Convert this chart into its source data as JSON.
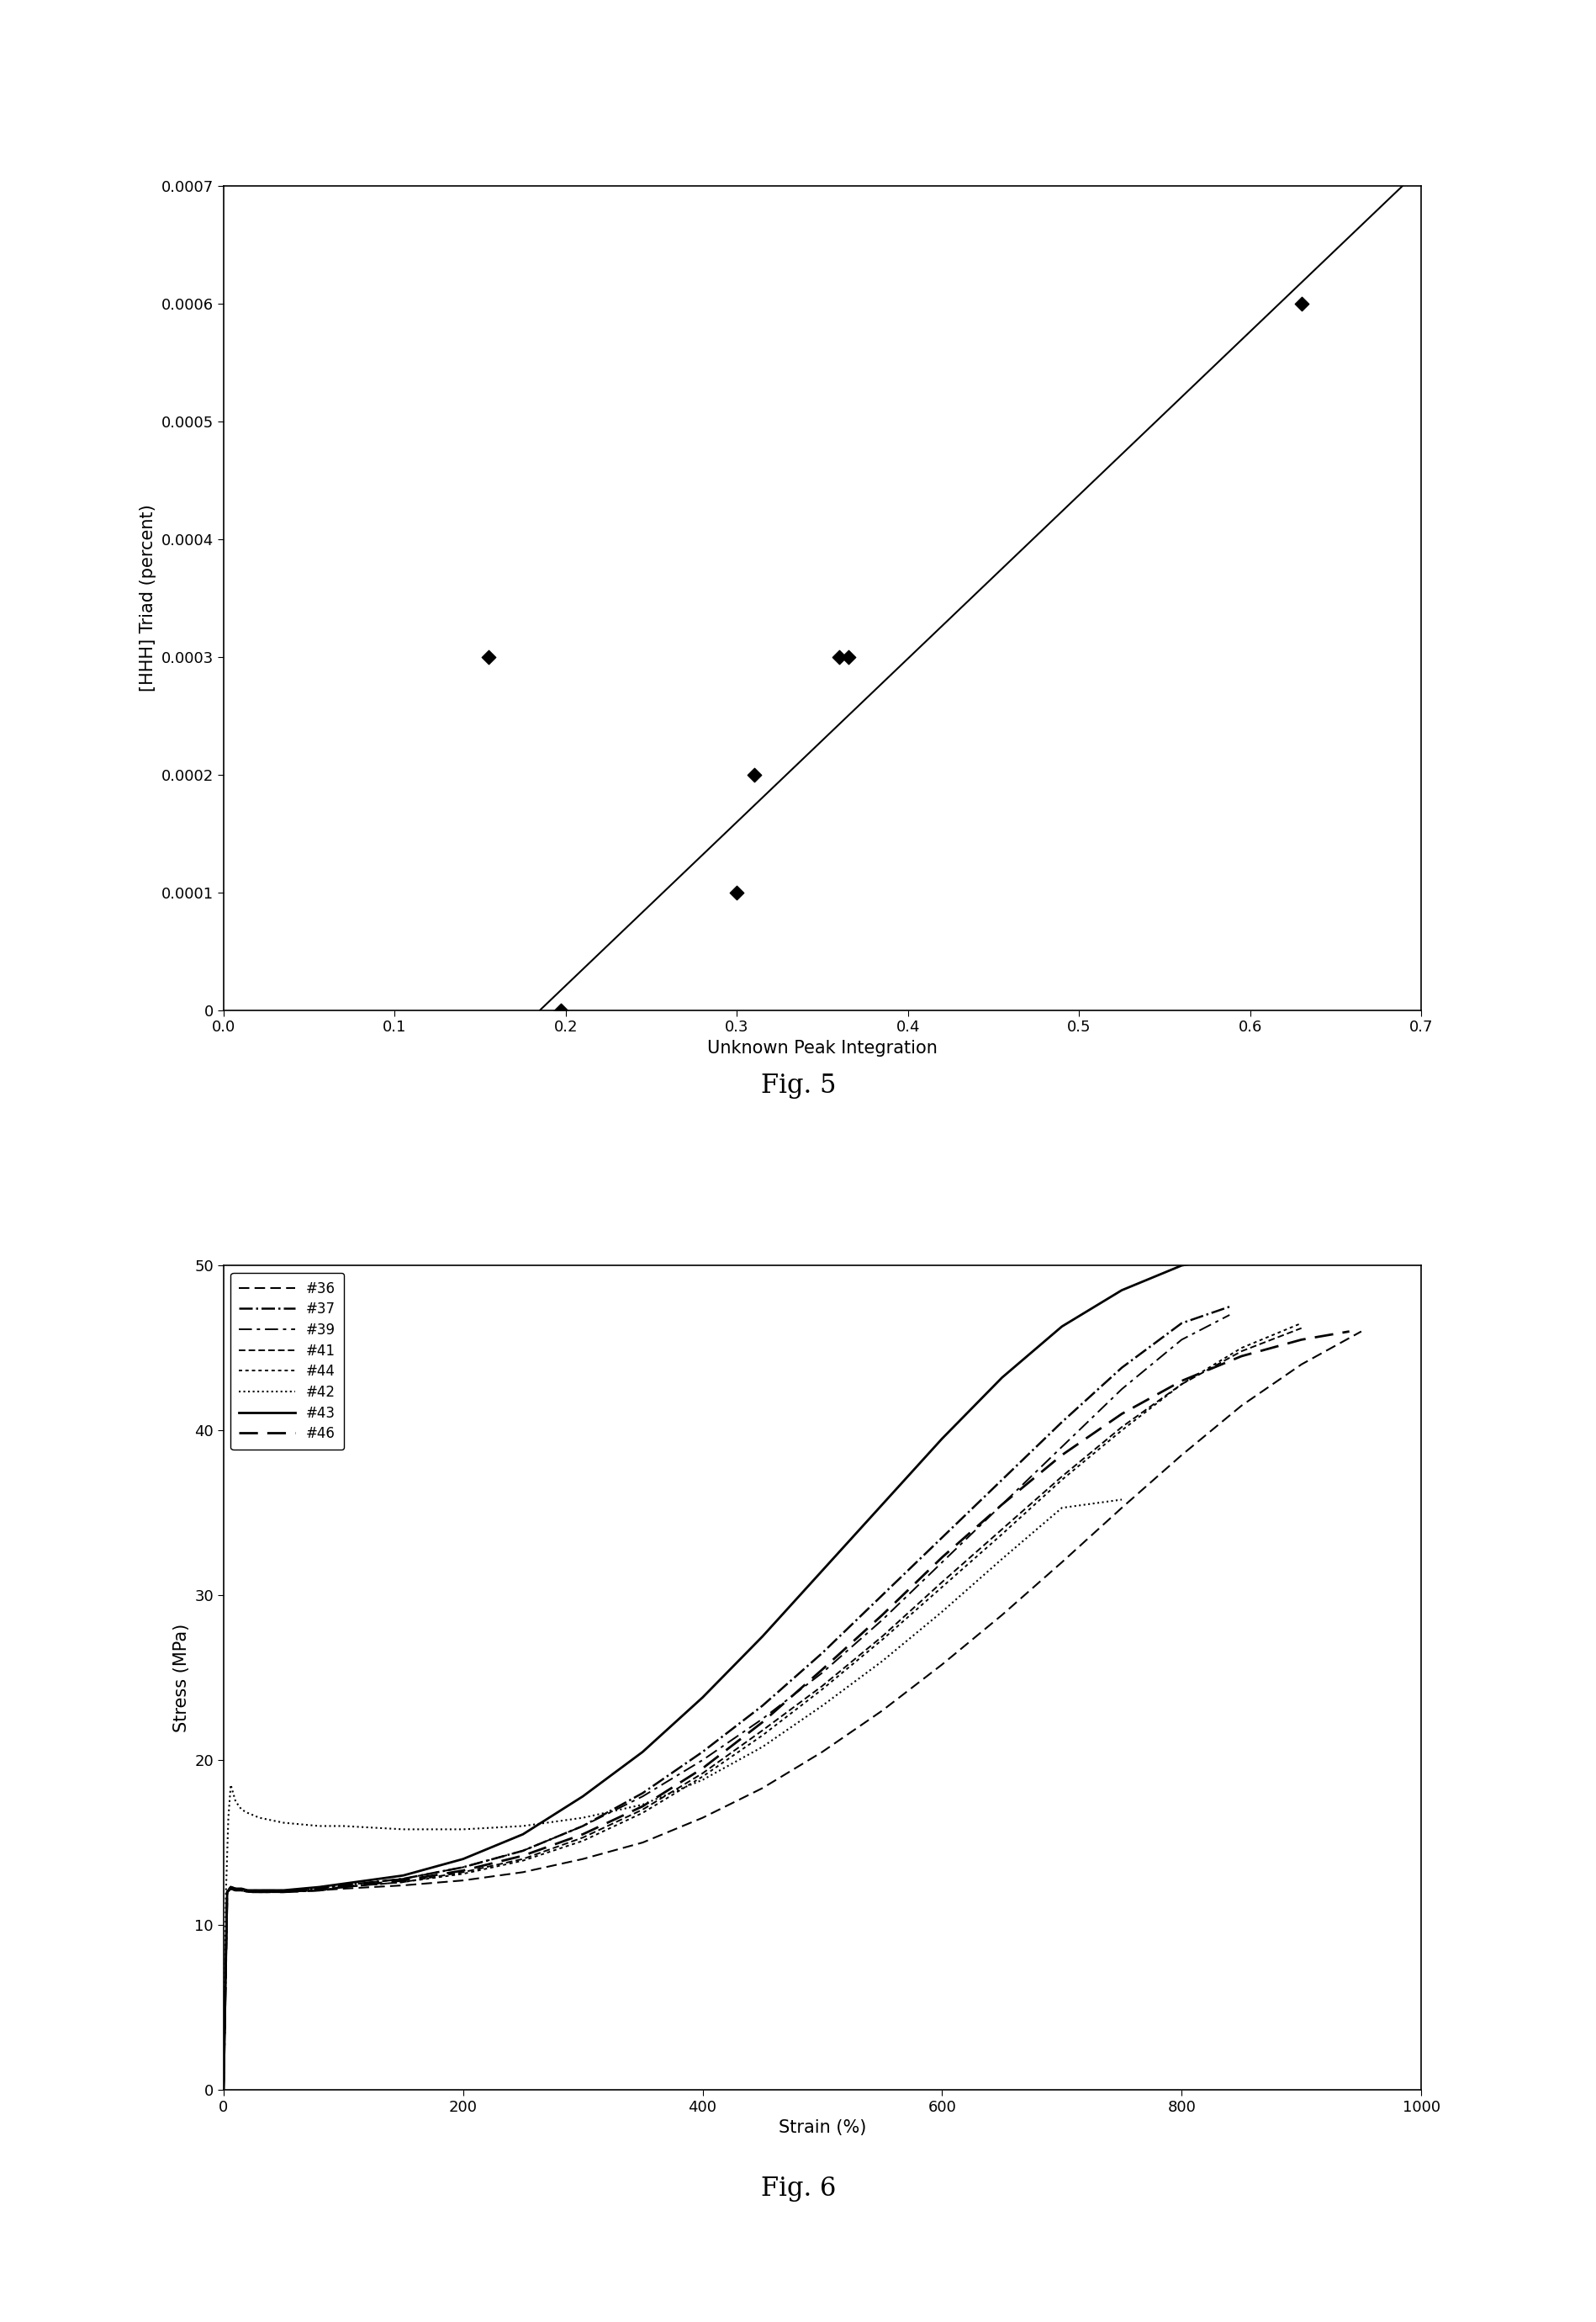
{
  "fig5": {
    "scatter_x": [
      0.197,
      0.155,
      0.3,
      0.31,
      0.36,
      0.365,
      0.63
    ],
    "scatter_y": [
      0.0,
      0.0003,
      0.0001,
      0.0002,
      0.0003,
      0.0003,
      0.0006
    ],
    "line_x": [
      0.185,
      0.7
    ],
    "line_y": [
      0.0,
      0.000715
    ],
    "xlabel": "Unknown Peak Integration",
    "ylabel": "[HHH] Triad (percent)",
    "xlim": [
      0,
      0.7
    ],
    "ylim": [
      0,
      0.0007
    ],
    "xticks": [
      0,
      0.1,
      0.2,
      0.3,
      0.4,
      0.5,
      0.6,
      0.7
    ],
    "yticks": [
      0,
      0.0001,
      0.0002,
      0.0003,
      0.0004,
      0.0005,
      0.0006,
      0.0007
    ],
    "fig_label": "Fig. 5"
  },
  "fig6": {
    "xlabel": "Strain (%)",
    "ylabel": "Stress (MPa)",
    "xlim": [
      0,
      1000
    ],
    "ylim": [
      0,
      50
    ],
    "xticks": [
      0,
      200,
      400,
      600,
      800,
      1000
    ],
    "yticks": [
      0,
      10,
      20,
      30,
      40,
      50
    ],
    "fig_label": "Fig. 6",
    "series": [
      {
        "label": "#36",
        "ls": "--",
        "dashes": [
          6,
          3
        ],
        "lw": 1.5,
        "color": "#000000",
        "x": [
          0,
          3,
          6,
          10,
          15,
          20,
          30,
          50,
          80,
          100,
          150,
          200,
          250,
          300,
          350,
          400,
          450,
          500,
          550,
          600,
          650,
          700,
          750,
          800,
          850,
          900,
          950
        ],
        "y": [
          0,
          12.0,
          12.2,
          12.1,
          12.1,
          12.0,
          12.0,
          12.0,
          12.1,
          12.2,
          12.4,
          12.7,
          13.2,
          14.0,
          15.0,
          16.5,
          18.3,
          20.5,
          23.0,
          25.8,
          28.8,
          32.0,
          35.3,
          38.5,
          41.5,
          44.0,
          46.0
        ]
      },
      {
        "label": "#37",
        "ls": "-.",
        "dashes": null,
        "lw": 1.8,
        "color": "#000000",
        "x": [
          0,
          3,
          6,
          10,
          15,
          20,
          30,
          50,
          80,
          100,
          150,
          200,
          250,
          300,
          350,
          400,
          450,
          500,
          550,
          600,
          650,
          700,
          750,
          800,
          840
        ],
        "y": [
          0,
          12.0,
          12.3,
          12.2,
          12.1,
          12.1,
          12.0,
          12.0,
          12.2,
          12.4,
          12.8,
          13.5,
          14.5,
          16.0,
          18.0,
          20.5,
          23.3,
          26.5,
          30.0,
          33.5,
          37.0,
          40.5,
          43.8,
          46.5,
          47.5
        ]
      },
      {
        "label": "#39",
        "ls": "-.",
        "dashes": [
          8,
          3,
          2,
          3
        ],
        "lw": 1.4,
        "color": "#000000",
        "x": [
          0,
          3,
          6,
          10,
          15,
          20,
          30,
          50,
          80,
          100,
          150,
          200,
          250,
          300,
          350,
          400,
          450,
          500,
          550,
          600,
          650,
          700,
          750,
          800,
          840
        ],
        "y": [
          0,
          12.0,
          12.3,
          12.2,
          12.2,
          12.1,
          12.1,
          12.1,
          12.2,
          12.4,
          12.8,
          13.5,
          14.5,
          16.0,
          17.8,
          20.0,
          22.5,
          25.3,
          28.5,
          32.0,
          35.5,
          39.0,
          42.5,
          45.5,
          47.0
        ]
      },
      {
        "label": "#41",
        "ls": "--",
        "dashes": [
          4,
          2
        ],
        "lw": 1.4,
        "color": "#000000",
        "x": [
          0,
          3,
          6,
          10,
          15,
          20,
          30,
          50,
          80,
          100,
          150,
          200,
          250,
          300,
          350,
          400,
          450,
          500,
          550,
          600,
          650,
          700,
          750,
          800,
          850,
          900
        ],
        "y": [
          0,
          12.0,
          12.2,
          12.1,
          12.1,
          12.0,
          12.0,
          12.0,
          12.1,
          12.3,
          12.6,
          13.2,
          14.0,
          15.3,
          17.0,
          19.2,
          21.8,
          24.5,
          27.5,
          30.8,
          34.0,
          37.2,
          40.2,
          42.8,
          44.8,
          46.2
        ]
      },
      {
        "label": "#44",
        "ls": "--",
        "dashes": [
          2,
          2
        ],
        "lw": 1.4,
        "color": "#000000",
        "x": [
          0,
          3,
          6,
          10,
          15,
          20,
          30,
          50,
          80,
          100,
          150,
          200,
          250,
          300,
          350,
          400,
          450,
          500,
          550,
          600,
          650,
          700,
          750,
          800,
          850,
          900
        ],
        "y": [
          0,
          12.0,
          12.2,
          12.1,
          12.1,
          12.0,
          12.0,
          12.0,
          12.1,
          12.3,
          12.6,
          13.1,
          13.9,
          15.1,
          16.8,
          19.0,
          21.5,
          24.3,
          27.3,
          30.5,
          33.7,
          37.0,
          40.0,
          42.8,
          45.0,
          46.5
        ]
      },
      {
        "label": "#42",
        "ls": ":",
        "dashes": null,
        "lw": 1.5,
        "color": "#000000",
        "x": [
          0,
          2,
          4,
          6,
          8,
          10,
          15,
          20,
          30,
          50,
          80,
          100,
          150,
          200,
          250,
          300,
          350,
          400,
          450,
          500,
          550,
          600,
          650,
          700,
          750
        ],
        "y": [
          0,
          12.0,
          16.5,
          18.5,
          18.0,
          17.5,
          17.0,
          16.8,
          16.5,
          16.2,
          16.0,
          16.0,
          15.8,
          15.8,
          16.0,
          16.5,
          17.3,
          18.8,
          20.8,
          23.3,
          26.0,
          29.0,
          32.2,
          35.3,
          35.8
        ]
      },
      {
        "label": "#43",
        "ls": "-",
        "dashes": null,
        "lw": 2.0,
        "color": "#000000",
        "x": [
          0,
          3,
          6,
          10,
          15,
          20,
          30,
          50,
          80,
          100,
          150,
          200,
          250,
          300,
          350,
          400,
          450,
          500,
          550,
          600,
          650,
          700,
          750,
          800,
          840
        ],
        "y": [
          0,
          12.0,
          12.3,
          12.2,
          12.2,
          12.1,
          12.1,
          12.1,
          12.3,
          12.5,
          13.0,
          14.0,
          15.5,
          17.8,
          20.5,
          23.8,
          27.5,
          31.5,
          35.5,
          39.5,
          43.2,
          46.3,
          48.5,
          50.0,
          50.5
        ]
      },
      {
        "label": "#46",
        "ls": "--",
        "dashes": [
          8,
          4
        ],
        "lw": 2.0,
        "color": "#000000",
        "x": [
          0,
          3,
          6,
          10,
          15,
          20,
          30,
          50,
          80,
          100,
          150,
          200,
          250,
          300,
          350,
          400,
          450,
          500,
          550,
          600,
          650,
          700,
          750,
          800,
          850,
          900,
          940
        ],
        "y": [
          0,
          12.0,
          12.2,
          12.1,
          12.1,
          12.0,
          12.0,
          12.0,
          12.1,
          12.3,
          12.7,
          13.3,
          14.2,
          15.5,
          17.2,
          19.5,
          22.3,
          25.5,
          28.8,
          32.3,
          35.5,
          38.5,
          41.0,
          43.0,
          44.5,
          45.5,
          46.0
        ]
      }
    ]
  },
  "background_color": "#ffffff",
  "text_color": "#000000",
  "fig5_label_fontsize": 22,
  "fig6_label_fontsize": 22,
  "axis_label_fontsize": 15,
  "tick_fontsize": 13
}
